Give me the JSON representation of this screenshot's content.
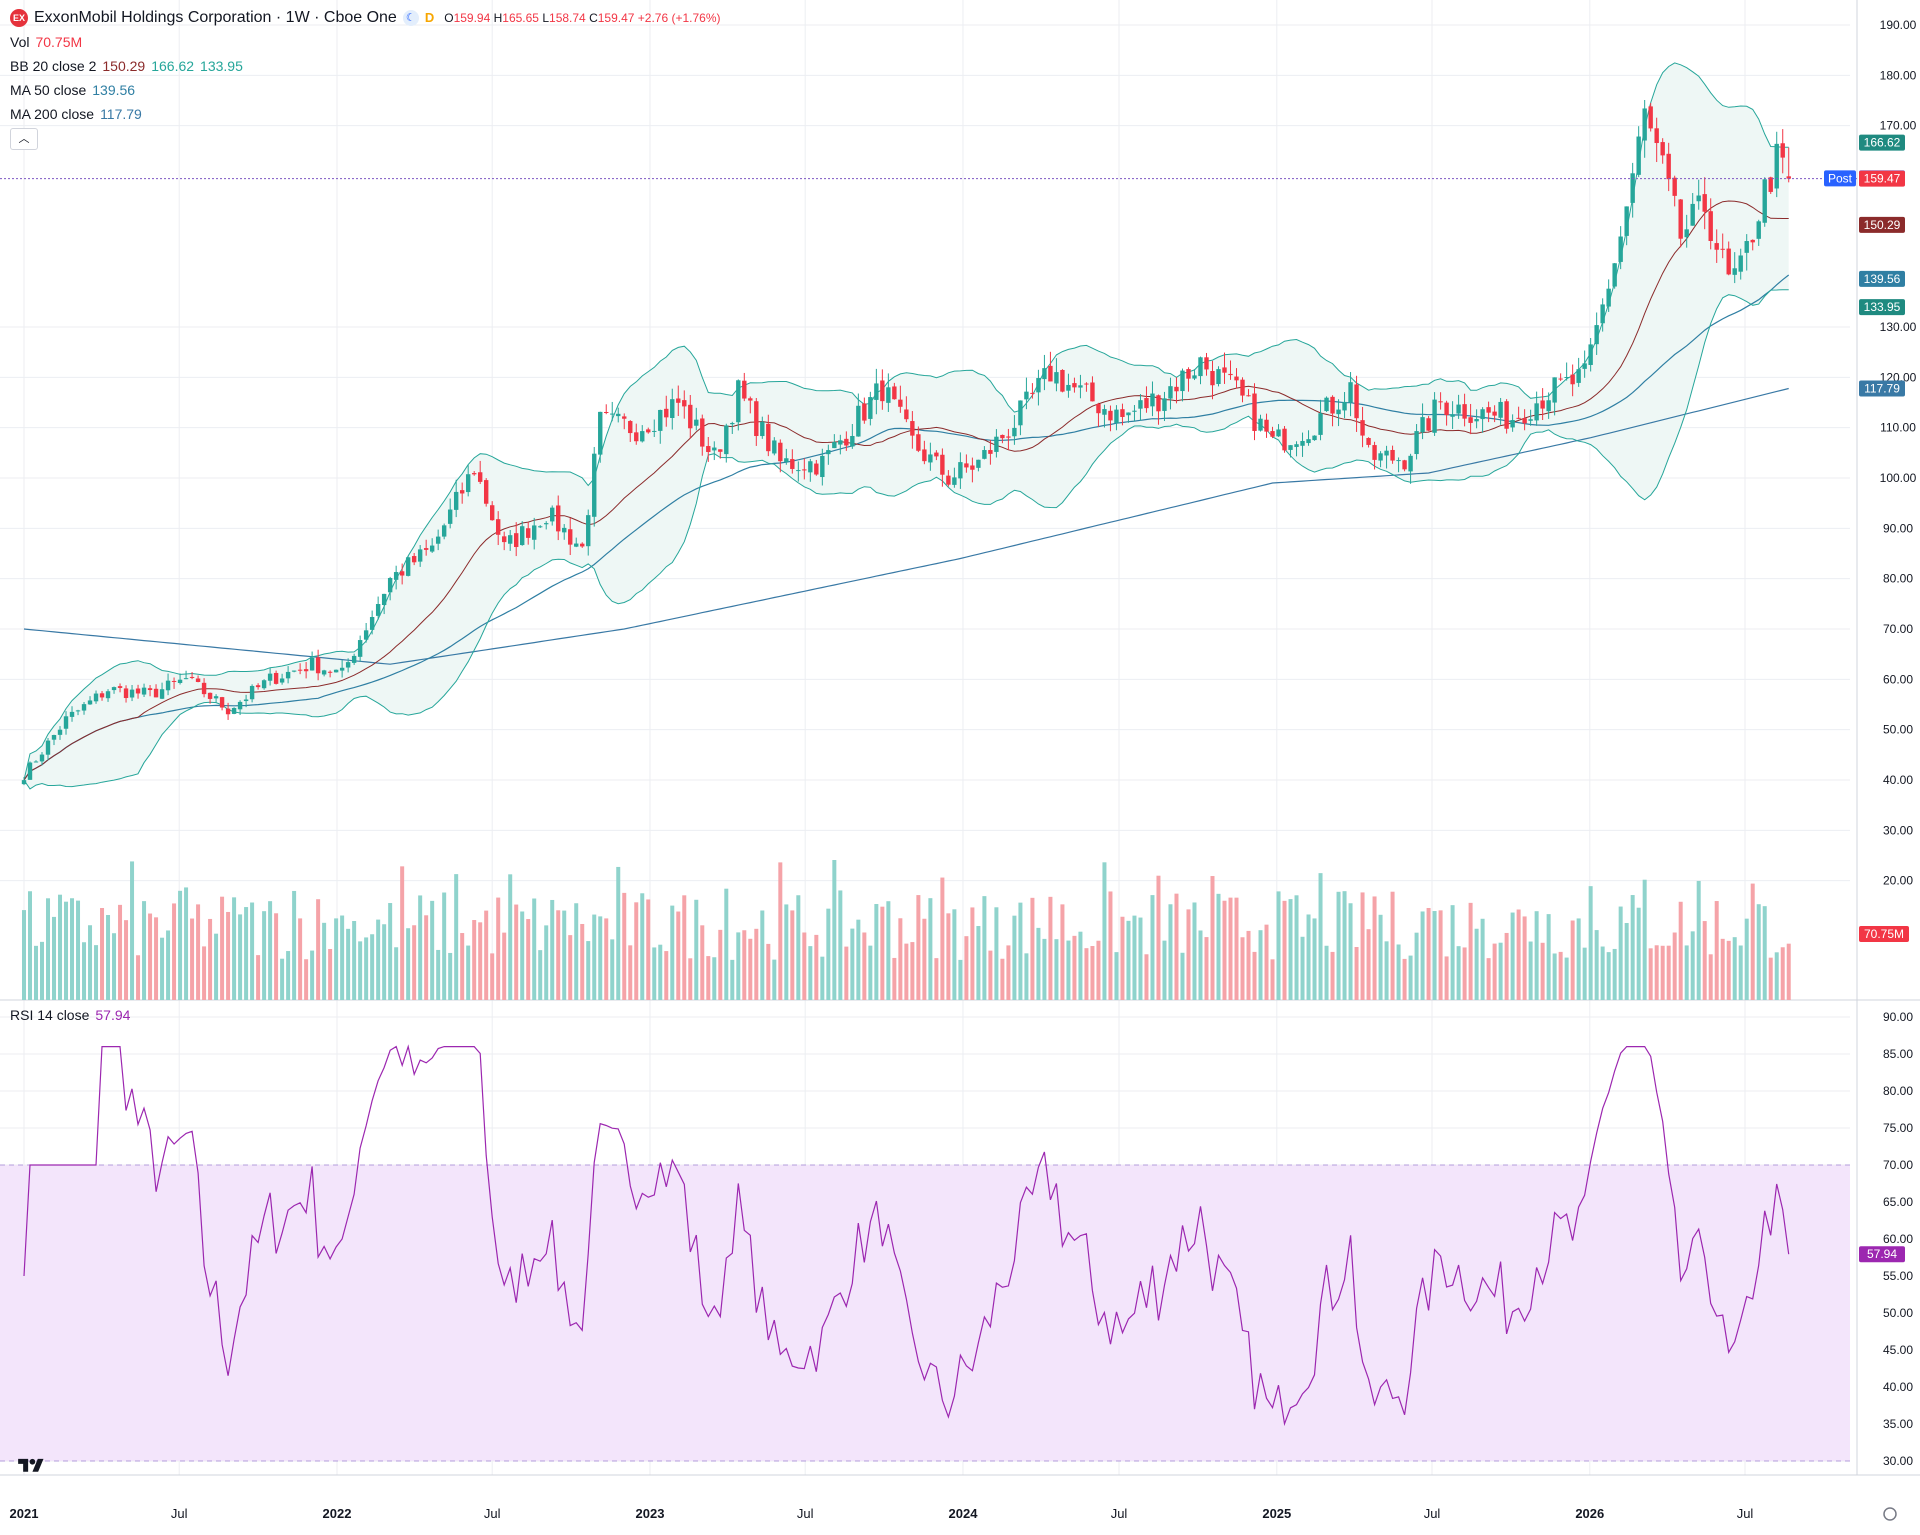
{
  "header": {
    "logo_text": "EX",
    "title": "ExxonMobil Holdings Corporation · 1W · Cboe One",
    "mode_badge": "D",
    "ohlc": {
      "o_label": "O",
      "o": "159.94",
      "h_label": "H",
      "h": "165.65",
      "l_label": "L",
      "l": "158.74",
      "c_label": "C",
      "c": "159.47",
      "change": "+2.76 (+1.76%)"
    }
  },
  "indicators": {
    "vol": {
      "name": "Vol",
      "value": "70.75M"
    },
    "bb": {
      "name": "BB 20 close 2",
      "basis": "150.29",
      "upper": "166.62",
      "lower": "133.95"
    },
    "ma50": {
      "name": "MA 50 close",
      "value": "139.56"
    },
    "ma200": {
      "name": "MA 200 close",
      "value": "117.79"
    },
    "rsi": {
      "name": "RSI 14 close",
      "value": "57.94"
    }
  },
  "colors": {
    "up": "#26a69a",
    "down": "#f23645",
    "vol_up": "#8fd3cc",
    "vol_down": "#f5a3a8",
    "bb_basis": "#8b2b2b",
    "bb_band": "#26a69a",
    "bb_fill": "#eef7f5",
    "ma50": "#2f7fa3",
    "ma200": "#3979a5",
    "rsi_line": "#9c27b0",
    "rsi_fill": "#f3e5fb",
    "post": "#2962ff",
    "grid": "#eceef2"
  },
  "price_labels": {
    "post_tag": "Post",
    "post": "159.53",
    "last": "159.47",
    "bb_upper": "166.62",
    "bb_basis": "150.29",
    "ma50": "139.56",
    "bb_lower": "133.95",
    "ma200": "117.79",
    "vol": "70.75M",
    "rsi": "57.94"
  },
  "chart_data": {
    "type": "candlestick",
    "symbol": "ExxonMobil Holdings Corporation",
    "interval": "1W",
    "x_tick_labels": [
      "2021",
      "Jul",
      "2022",
      "Jul",
      "2023",
      "Jul",
      "2024",
      "Jul",
      "2025",
      "Jul",
      "2026",
      "Jul"
    ],
    "x_tick_dates": [
      "2021-01-01",
      "2021-07-01",
      "2022-01-01",
      "2022-07-01",
      "2023-01-01",
      "2023-07-01",
      "2024-01-01",
      "2024-07-01",
      "2025-01-01",
      "2025-07-01",
      "2026-01-01",
      "2026-07-01"
    ],
    "price_axis": {
      "ticks": [
        "190.00",
        "180.00",
        "170.00",
        "130.00",
        "120.00",
        "110.00",
        "100.00",
        "90.00",
        "80.00",
        "70.00",
        "60.00",
        "50.00",
        "40.00",
        "30.00",
        "20.00"
      ],
      "min": 15,
      "max": 192
    },
    "rsi_axis": {
      "ticks": [
        "90.00",
        "85.00",
        "80.00",
        "75.00",
        "70.00",
        "65.00",
        "60.00",
        "55.00",
        "50.00",
        "45.00",
        "40.00",
        "35.00",
        "30.00"
      ],
      "min": 29,
      "max": 91,
      "overbought": 70,
      "oversold": 30
    },
    "close_key_points": [
      [
        "2021-01-01",
        41
      ],
      [
        "2021-02-19",
        52
      ],
      [
        "2021-04-09",
        58
      ],
      [
        "2021-05-28",
        57
      ],
      [
        "2021-07-09",
        60
      ],
      [
        "2021-08-27",
        54
      ],
      [
        "2021-10-15",
        60
      ],
      [
        "2021-12-03",
        63
      ],
      [
        "2022-01-07",
        61
      ],
      [
        "2022-03-04",
        80
      ],
      [
        "2022-04-22",
        86
      ],
      [
        "2022-06-10",
        102
      ],
      [
        "2022-07-15",
        86
      ],
      [
        "2022-09-02",
        93
      ],
      [
        "2022-10-14",
        86
      ],
      [
        "2022-11-04",
        111
      ],
      [
        "2022-12-16",
        110
      ],
      [
        "2023-02-03",
        115
      ],
      [
        "2023-03-17",
        104
      ],
      [
        "2023-04-14",
        117
      ],
      [
        "2023-06-02",
        103
      ],
      [
        "2023-07-21",
        103
      ],
      [
        "2023-09-29",
        118
      ],
      [
        "2023-11-03",
        107
      ],
      [
        "2023-12-15",
        100
      ],
      [
        "2024-01-19",
        103
      ],
      [
        "2024-03-01",
        111
      ],
      [
        "2024-04-12",
        121
      ],
      [
        "2024-05-24",
        116
      ],
      [
        "2024-07-05",
        112
      ],
      [
        "2024-08-16",
        116
      ],
      [
        "2024-10-04",
        123
      ],
      [
        "2024-11-15",
        117
      ],
      [
        "2024-12-27",
        107
      ],
      [
        "2025-02-07",
        110
      ],
      [
        "2025-03-28",
        118
      ],
      [
        "2025-04-18",
        104
      ],
      [
        "2025-05-30",
        104
      ],
      [
        "2025-07-11",
        115
      ],
      [
        "2025-08-22",
        113
      ],
      [
        "2025-10-03",
        112
      ],
      [
        "2025-11-14",
        117
      ],
      [
        "2025-12-26",
        120
      ],
      [
        "2026-02-06",
        148
      ],
      [
        "2026-03-06",
        172
      ],
      [
        "2026-03-27",
        161
      ],
      [
        "2026-04-17",
        148
      ],
      [
        "2026-05-15",
        154
      ],
      [
        "2026-06-12",
        139
      ],
      [
        "2026-06-26",
        141
      ],
      [
        "2026-07-24",
        157
      ],
      [
        "2026-08-07",
        163
      ],
      [
        "2026-08-21",
        159.47
      ]
    ],
    "ma200_key_points": [
      [
        "2021-01-01",
        70
      ],
      [
        "2022-03-04",
        63
      ],
      [
        "2022-12-02",
        70
      ],
      [
        "2023-12-29",
        84
      ],
      [
        "2024-12-27",
        99
      ],
      [
        "2025-06-27",
        101
      ],
      [
        "2026-01-02",
        108
      ],
      [
        "2026-08-21",
        117.79
      ]
    ],
    "last": {
      "open": 159.94,
      "high": 165.65,
      "low": 158.74,
      "close": 159.47,
      "change": 2.76,
      "change_pct": 1.76,
      "post": 159.53
    },
    "last_indicators": {
      "bb_basis": 150.29,
      "bb_upper": 166.62,
      "bb_lower": 133.95,
      "ma50": 139.56,
      "ma200": 117.79,
      "volume": "70.75M",
      "rsi": 57.94
    }
  }
}
